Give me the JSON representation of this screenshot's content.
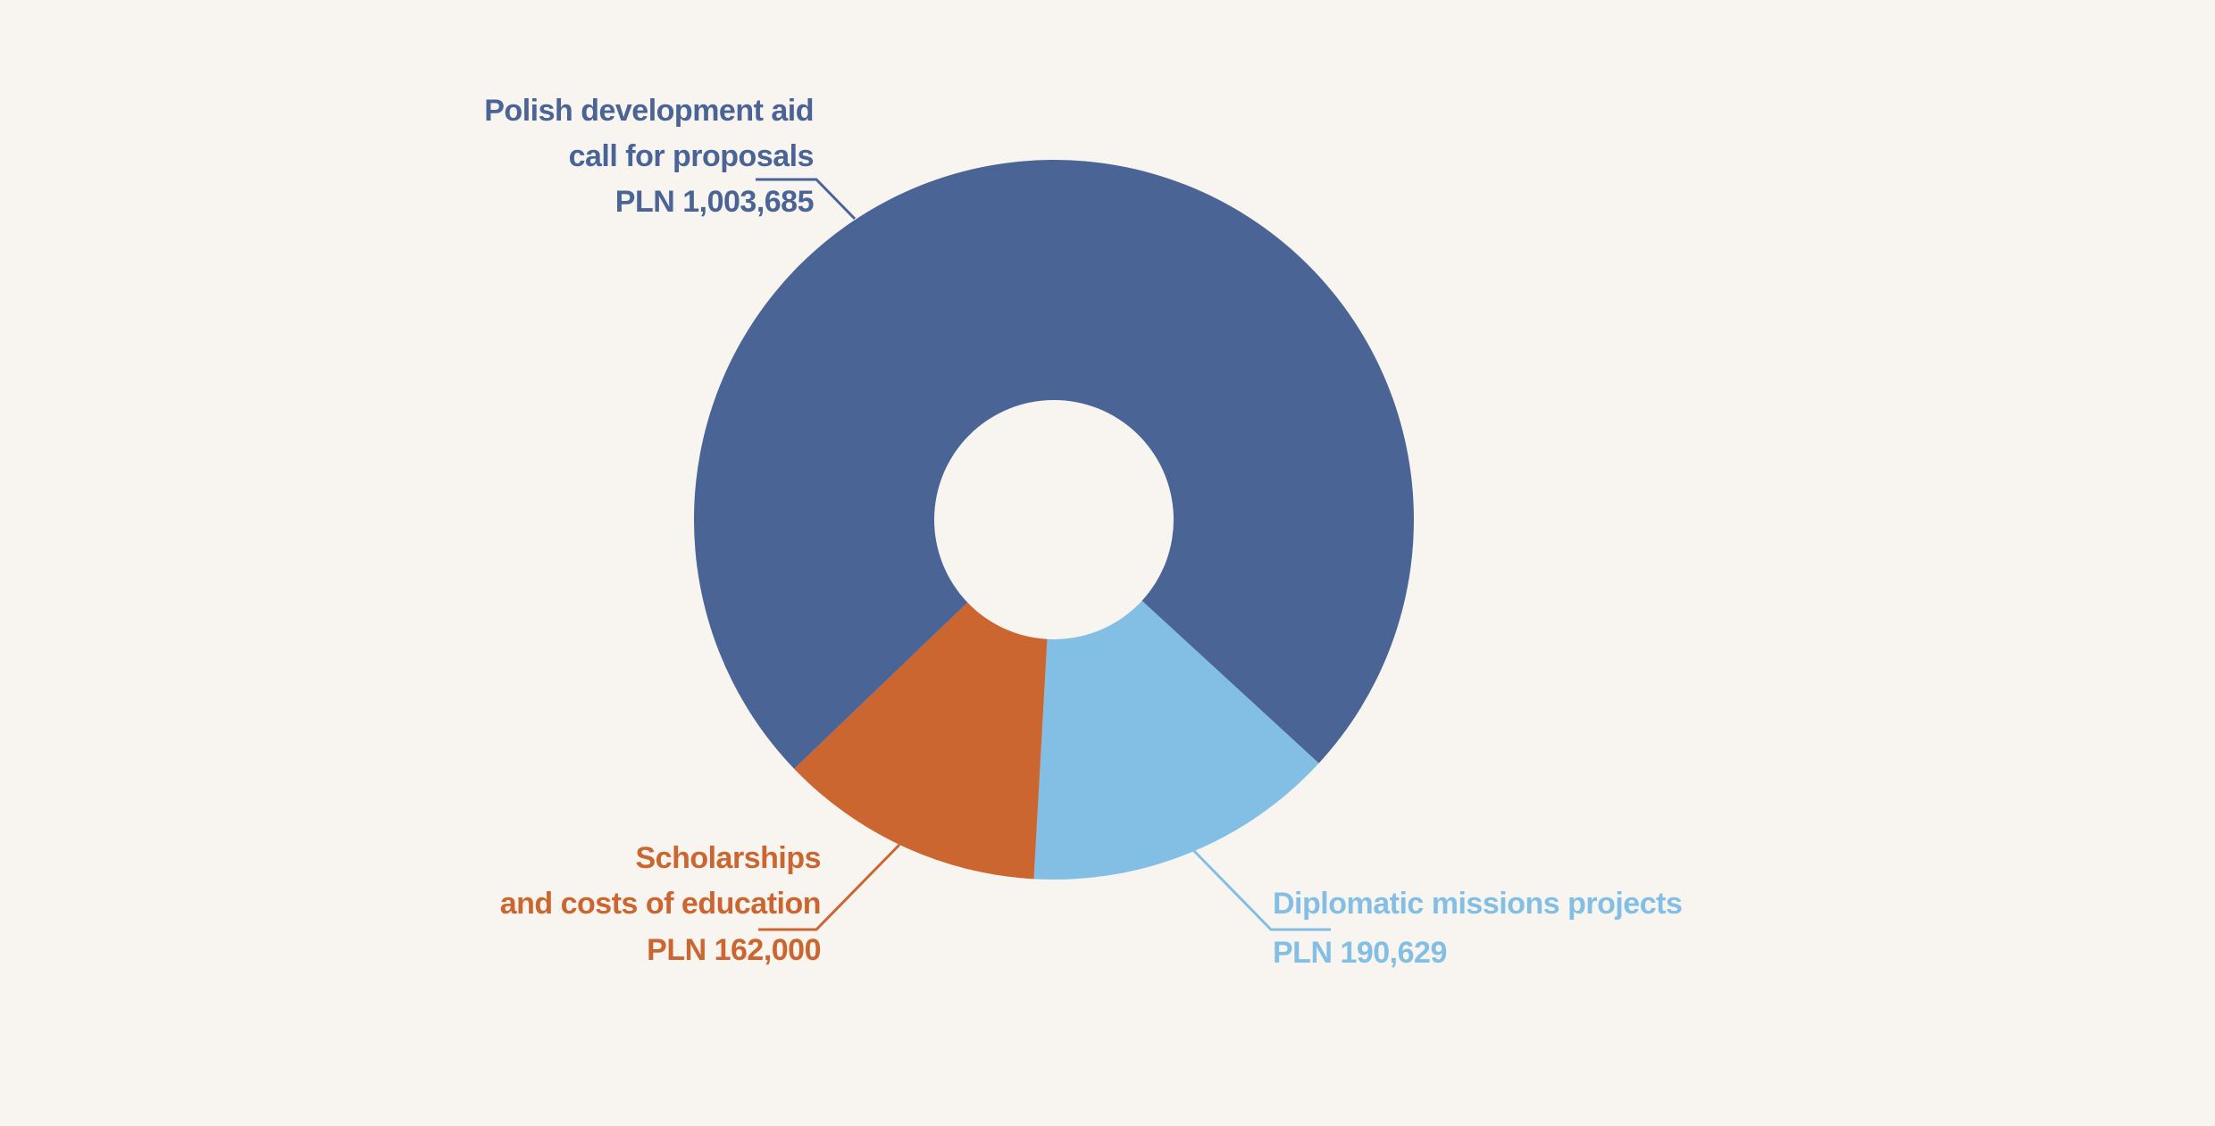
{
  "chart_data": {
    "type": "donut",
    "categories": [
      [
        "Diplomatic missions projects"
      ],
      [
        "Scholarships",
        "and costs of education"
      ],
      [
        "Polish development aid",
        "call for proposals"
      ]
    ],
    "values": [
      190629,
      162000,
      1003685
    ],
    "value_labels": [
      "PLN 190,629",
      "PLN 162,000",
      "PLN 1,003,685"
    ],
    "colors": [
      "#83bfe4",
      "#cb6631",
      "#4a6496"
    ]
  }
}
